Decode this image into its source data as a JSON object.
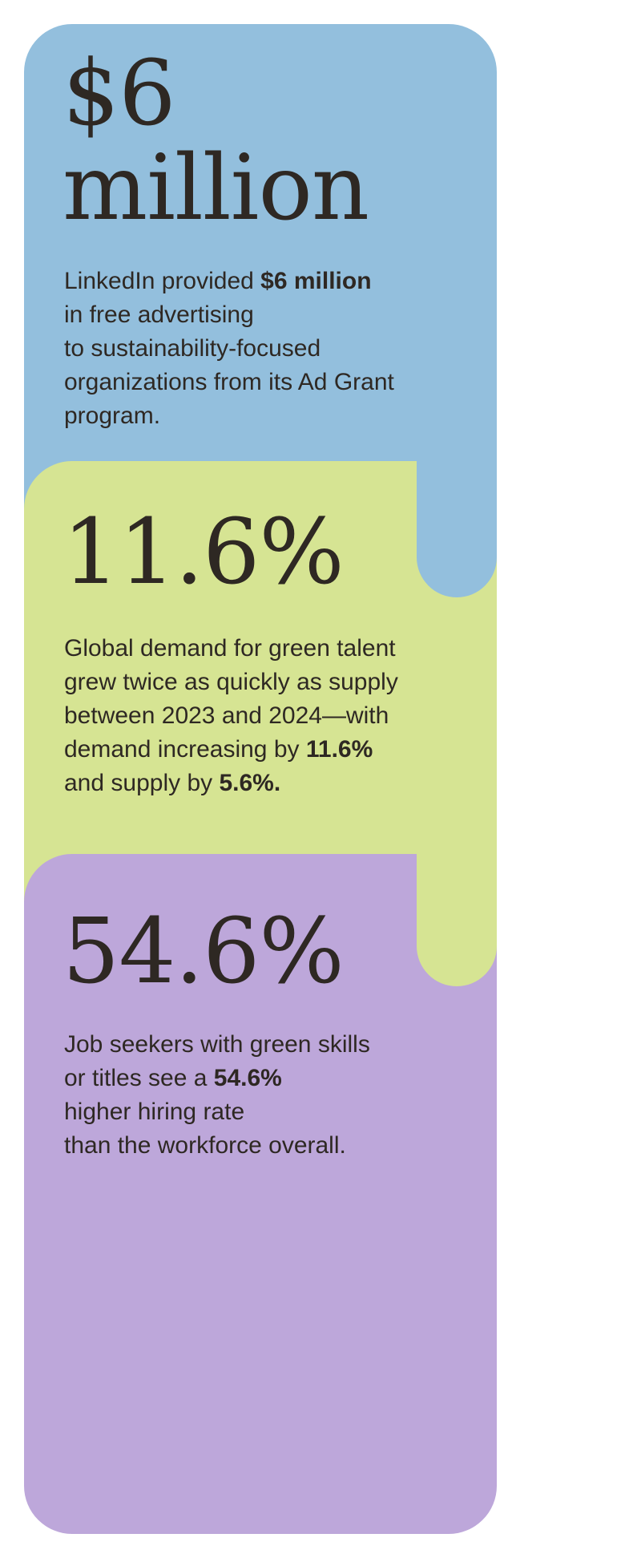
{
  "colors": {
    "blue": "#93bfdd",
    "green": "#d6e493",
    "purple": "#bda7da",
    "text": "#2e2823",
    "background": "#ffffff"
  },
  "cards": [
    {
      "id": "ad-grant",
      "headline": "$6 million",
      "body_lines": [
        [
          {
            "t": "LinkedIn provided ",
            "b": false
          },
          {
            "t": "$6 million",
            "b": true
          }
        ],
        [
          {
            "t": "in free advertising",
            "b": false
          }
        ],
        [
          {
            "t": "to sustainability-focused",
            "b": false
          }
        ],
        [
          {
            "t": "organizations from its Ad Grant",
            "b": false
          }
        ],
        [
          {
            "t": "program.",
            "b": false
          }
        ]
      ]
    },
    {
      "id": "green-talent-demand",
      "headline": "11.6%",
      "body_lines": [
        [
          {
            "t": "Global demand for green talent",
            "b": false
          }
        ],
        [
          {
            "t": "grew twice as quickly as supply",
            "b": false
          }
        ],
        [
          {
            "t": "between 2023 and 2024—with",
            "b": false
          }
        ],
        [
          {
            "t": "demand increasing by ",
            "b": false
          },
          {
            "t": "11.6%",
            "b": true
          }
        ],
        [
          {
            "t": "and supply by ",
            "b": false
          },
          {
            "t": "5.6%.",
            "b": true
          }
        ]
      ]
    },
    {
      "id": "hiring-rate",
      "headline": "54.6%",
      "body_lines": [
        [
          {
            "t": "Job seekers with green skills",
            "b": false
          }
        ],
        [
          {
            "t": "or titles see a ",
            "b": false
          },
          {
            "t": "54.6%",
            "b": true
          }
        ],
        [
          {
            "t": "higher hiring rate",
            "b": false
          }
        ],
        [
          {
            "t": "than the workforce overall.",
            "b": false
          }
        ]
      ]
    }
  ]
}
